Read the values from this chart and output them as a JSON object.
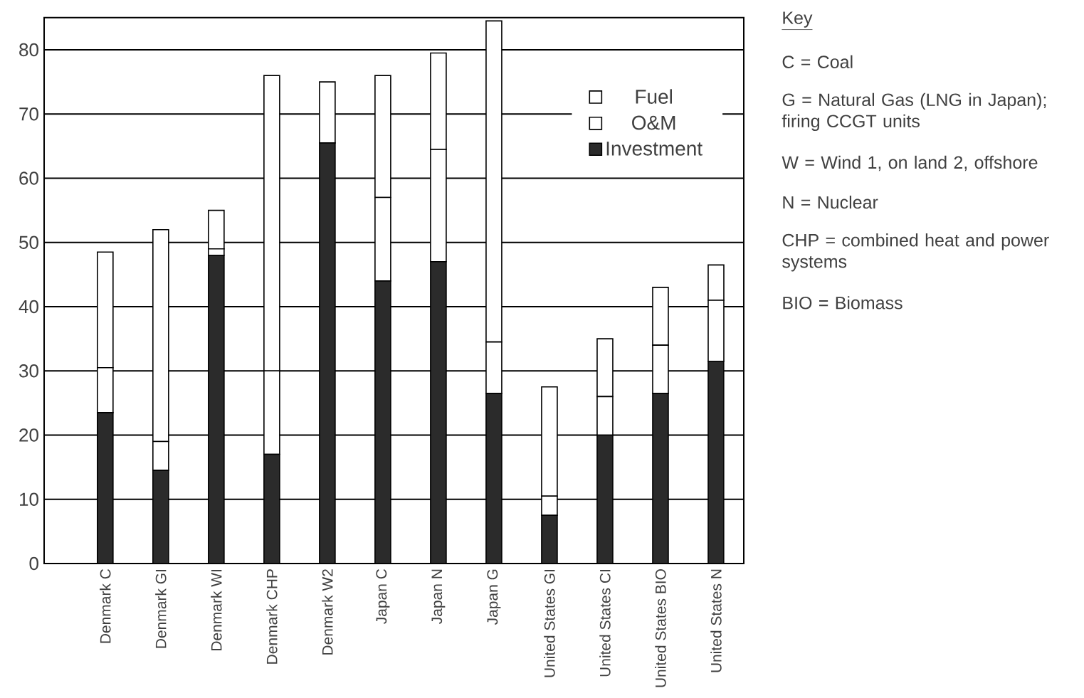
{
  "chart_data": {
    "type": "bar",
    "stacked": true,
    "categories": [
      "Denmark C",
      "Denmark GI",
      "Denmark WI",
      "Denmark CHP",
      "Denmark W2",
      "Japan C",
      "Japan N",
      "Japan G",
      "United States GI",
      "United States CI",
      "United States BIO",
      "United States N"
    ],
    "series": [
      {
        "name": "Investment",
        "color": "#2b2b2b",
        "values": [
          23.5,
          14.5,
          48,
          17,
          65.5,
          44,
          47,
          26.5,
          7.5,
          20,
          26.5,
          31.5
        ]
      },
      {
        "name": "O&M",
        "color": "#ffffff",
        "values": [
          7,
          4.5,
          1,
          13,
          9.5,
          13,
          17.5,
          8,
          3,
          6,
          7.5,
          9.5
        ]
      },
      {
        "name": "Fuel",
        "color": "#ffffff",
        "values": [
          18,
          33,
          6,
          46,
          null,
          19,
          15,
          50,
          17,
          9,
          9,
          5.5
        ]
      }
    ],
    "ylim": [
      0,
      85
    ],
    "yticks": [
      0,
      10,
      20,
      30,
      40,
      50,
      60,
      70,
      80
    ],
    "grid": "y",
    "legend": "top right",
    "annotations": [
      "Key",
      "C = Coal",
      "G = Natural Gas (LNG in Japan); firing CCGT units",
      "W = Wind 1, on land 2, offshore",
      "N = Nuclear",
      "CHP = combined heat and power systems",
      "BIO = Biomass"
    ]
  }
}
